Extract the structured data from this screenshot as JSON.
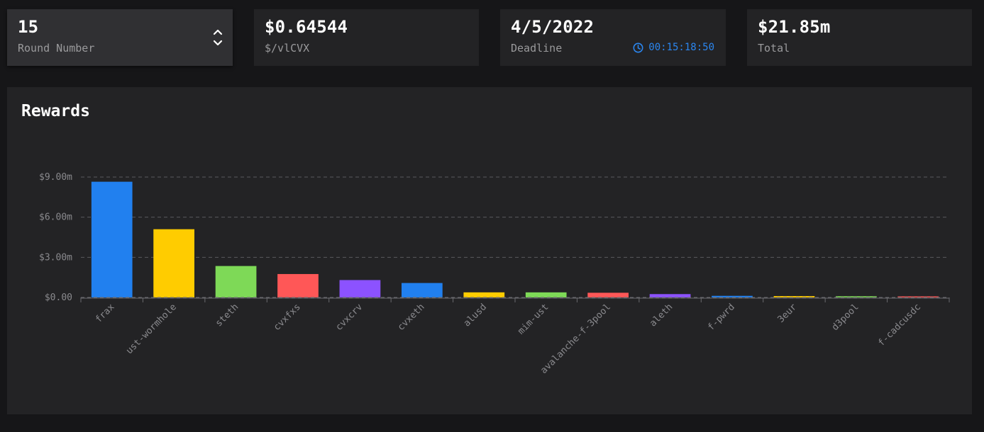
{
  "round": {
    "value": "15",
    "label": "Round Number"
  },
  "price": {
    "value": "$0.64544",
    "label": "$/vlCVX"
  },
  "deadline": {
    "value": "4/5/2022",
    "label": "Deadline",
    "countdown": "00:15:18:50"
  },
  "total": {
    "value": "$21.85m",
    "label": "Total"
  },
  "rewards": {
    "title": "Rewards"
  },
  "colors": {
    "accent": "#2b86ef",
    "background": "#161618",
    "card": "#232325"
  },
  "chart_data": {
    "type": "bar",
    "title": "Rewards",
    "xlabel": "",
    "ylabel": "",
    "ylim": [
      0,
      9.5
    ],
    "yticks": [
      0,
      3,
      6,
      9
    ],
    "ytick_labels": [
      "$0.00",
      "$3.00m",
      "$6.00m",
      "$9.00m"
    ],
    "grid": true,
    "categories": [
      "frax",
      "ust-wormhole",
      "steth",
      "cvxfxs",
      "cvxcrv",
      "cvxeth",
      "alusd",
      "mim-ust",
      "avalanche-f-3pool",
      "aleth",
      "f-pwrd",
      "3eur",
      "d3pool",
      "f-cadcusdc"
    ],
    "values": [
      8.65,
      5.1,
      2.35,
      1.75,
      1.3,
      1.08,
      0.38,
      0.38,
      0.35,
      0.25,
      0.12,
      0.1,
      0.09,
      0.03
    ],
    "unit": "$ millions",
    "colors": [
      "#2180ef",
      "#ffcc00",
      "#7ed957",
      "#ff5757",
      "#8c52ff",
      "#2180ef",
      "#ffcc00",
      "#7ed957",
      "#ff5757",
      "#8c52ff",
      "#2180ef",
      "#ffcc00",
      "#7ed957",
      "#ff5757"
    ]
  }
}
